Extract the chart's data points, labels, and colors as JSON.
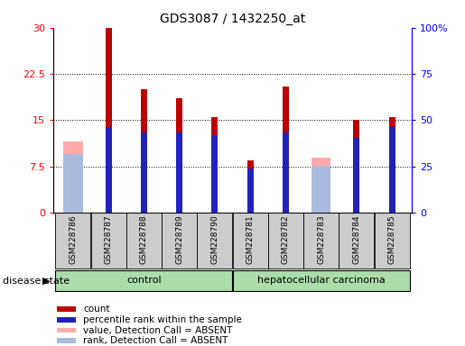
{
  "title": "GDS3087 / 1432250_at",
  "samples": [
    "GSM228786",
    "GSM228787",
    "GSM228788",
    "GSM228789",
    "GSM228790",
    "GSM228781",
    "GSM228782",
    "GSM228783",
    "GSM228784",
    "GSM228785"
  ],
  "count_values": [
    0,
    30,
    20,
    18.5,
    15.5,
    8.5,
    20.5,
    0,
    15,
    15.5
  ],
  "rank_values": [
    0,
    46.5,
    43.5,
    43.5,
    42.0,
    24.0,
    43.5,
    0,
    40.5,
    46.5
  ],
  "absent_value_values": [
    11.5,
    0,
    0,
    0,
    0,
    0,
    0,
    9.0,
    0,
    0
  ],
  "absent_rank_values": [
    31.5,
    0,
    0,
    0,
    0,
    0,
    0,
    25.5,
    0,
    0
  ],
  "n_control": 5,
  "n_carcinoma": 5,
  "ylim_left": [
    0,
    30
  ],
  "ylim_right": [
    0,
    100
  ],
  "yticks_left": [
    0,
    7.5,
    15,
    22.5,
    30
  ],
  "ytick_labels_left": [
    "0",
    "7.5",
    "15",
    "22.5",
    "30"
  ],
  "yticks_right": [
    0,
    25,
    50,
    75,
    100
  ],
  "ytick_labels_right": [
    "0",
    "25",
    "50",
    "75",
    "100%"
  ],
  "count_color": "#BB0000",
  "rank_color": "#2222BB",
  "absent_value_color": "#FFAAAA",
  "absent_rank_color": "#AABBDD",
  "control_bg": "#AADDAA",
  "carcinoma_bg": "#AADDAA",
  "label_bg": "#CCCCCC",
  "group_control_label": "control",
  "group_carcinoma_label": "hepatocellular carcinoma",
  "legend_items": [
    {
      "label": "count",
      "color": "#BB0000"
    },
    {
      "label": "percentile rank within the sample",
      "color": "#2222BB"
    },
    {
      "label": "value, Detection Call = ABSENT",
      "color": "#FFAAAA"
    },
    {
      "label": "rank, Detection Call = ABSENT",
      "color": "#AABBDD"
    }
  ],
  "narrow_bar_width": 0.18,
  "wide_bar_width": 0.55
}
